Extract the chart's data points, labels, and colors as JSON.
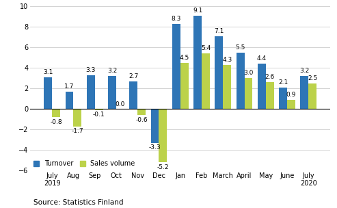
{
  "categories": [
    "July\n2019",
    "Aug",
    "Sep",
    "Oct",
    "Nov",
    "Dec",
    "Jan",
    "Feb",
    "March",
    "April",
    "May",
    "June",
    "July\n2020"
  ],
  "turnover": [
    3.1,
    1.7,
    3.3,
    3.2,
    2.7,
    -3.3,
    8.3,
    9.1,
    7.1,
    5.5,
    4.4,
    2.1,
    3.2
  ],
  "sales_volume": [
    -0.8,
    -1.7,
    -0.1,
    0.0,
    -0.6,
    -5.2,
    4.5,
    5.4,
    4.3,
    3.0,
    2.6,
    0.9,
    2.5
  ],
  "turnover_color": "#2e75b6",
  "sales_volume_color": "#bcd24a",
  "ylim": [
    -6,
    10
  ],
  "yticks": [
    -6,
    -4,
    -2,
    0,
    2,
    4,
    6,
    8,
    10
  ],
  "legend_labels": [
    "Turnover",
    "Sales volume"
  ],
  "source_text": "Source: Statistics Finland",
  "bar_width": 0.38,
  "label_fontsize": 6.5,
  "axis_fontsize": 7.0,
  "source_fontsize": 7.5
}
